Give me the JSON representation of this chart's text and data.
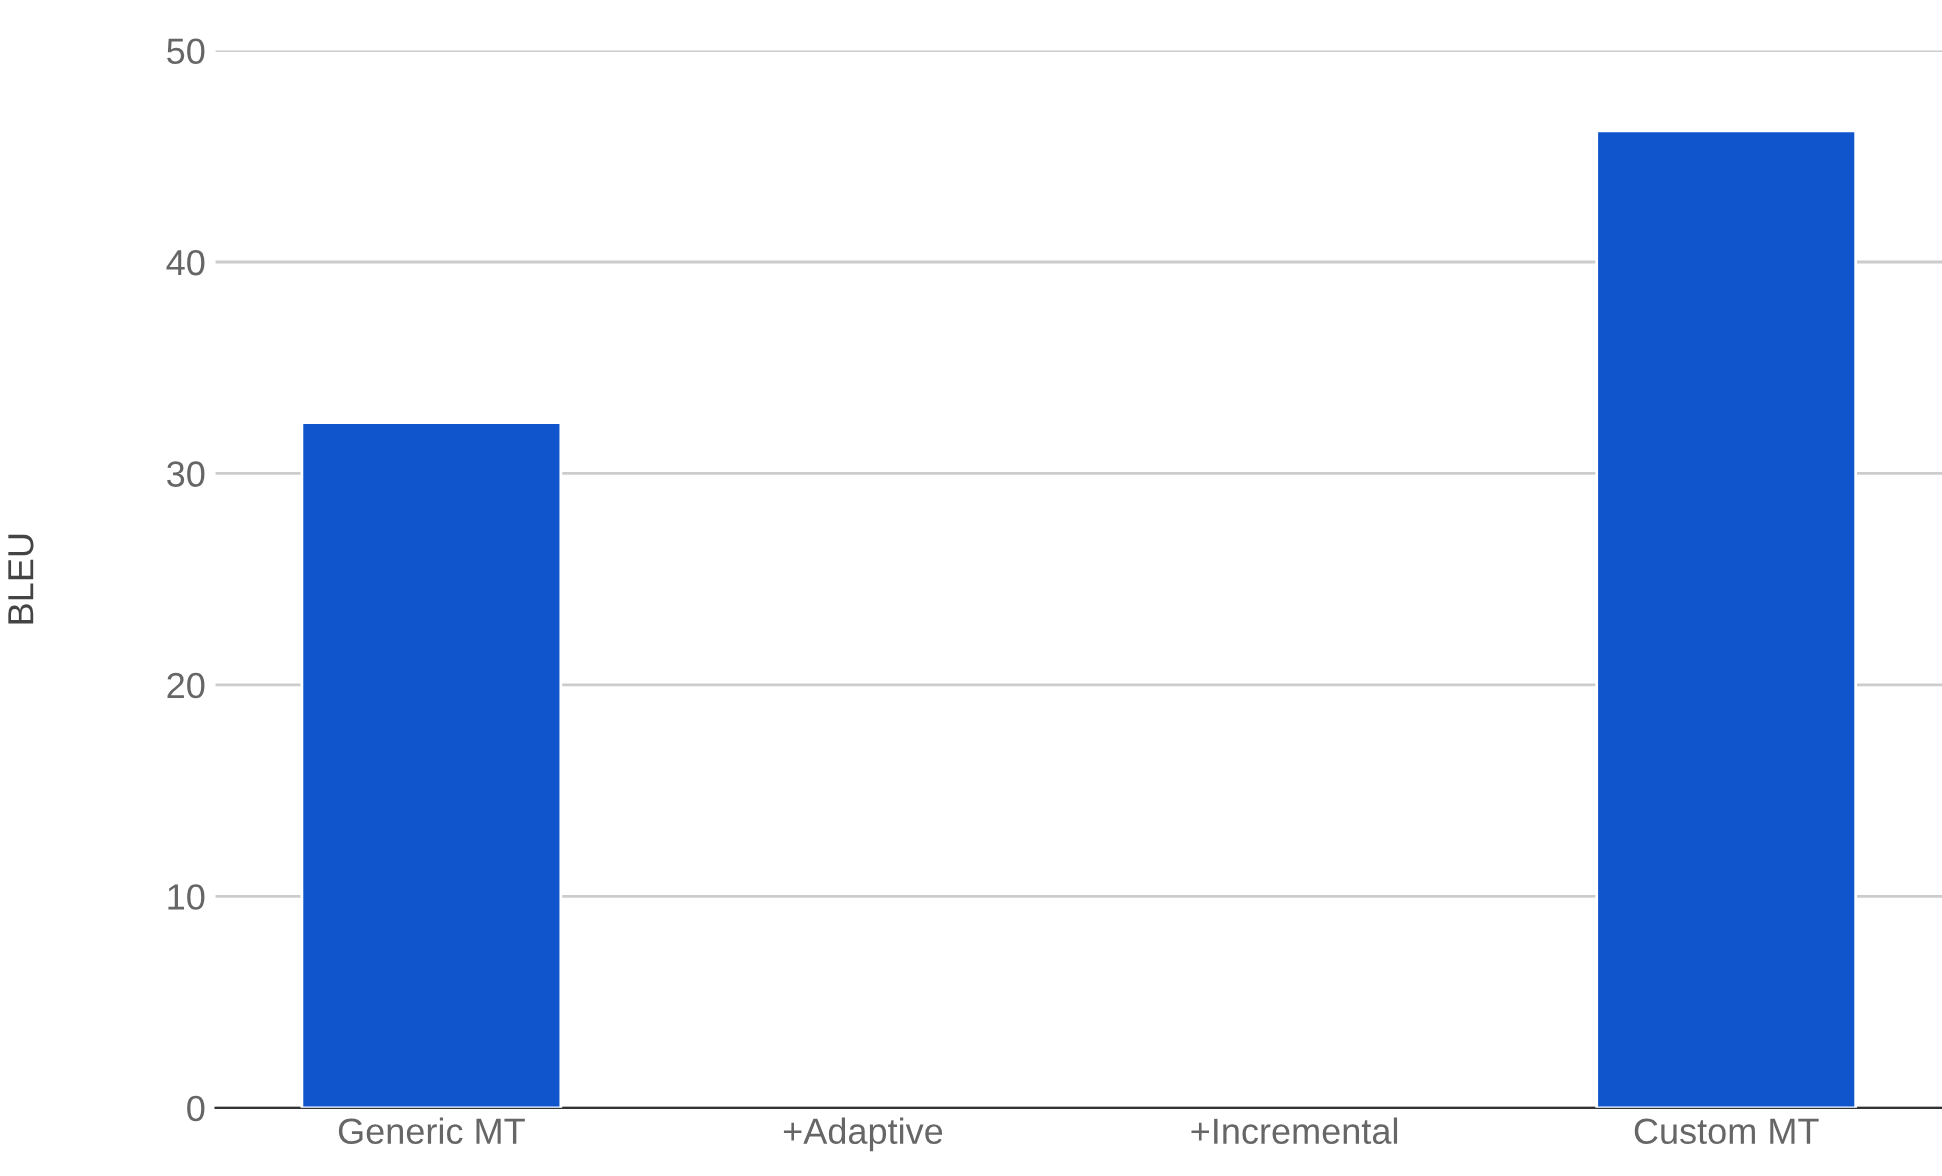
{
  "chart_data": {
    "type": "bar",
    "ylabel": "BLEU",
    "categories": [
      "Generic MT",
      "+Adaptive",
      "+Incremental",
      "Custom MT"
    ],
    "values": [
      32.4,
      null,
      null,
      46.2
    ],
    "color": "#1155cc",
    "ylim": [
      0,
      50
    ],
    "yticks": [
      0,
      10,
      20,
      30,
      40,
      50
    ],
    "grid": "y",
    "legend": false
  }
}
